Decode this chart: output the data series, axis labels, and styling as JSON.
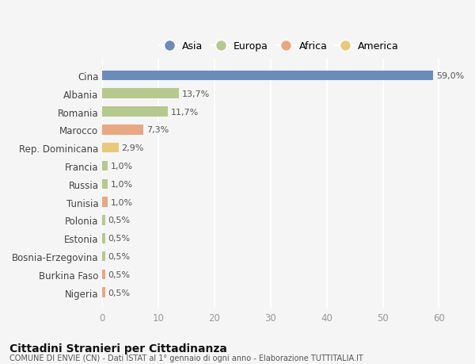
{
  "categories": [
    "Cina",
    "Albania",
    "Romania",
    "Marocco",
    "Rep. Dominicana",
    "Francia",
    "Russia",
    "Tunisia",
    "Polonia",
    "Estonia",
    "Bosnia-Erzegovina",
    "Burkina Faso",
    "Nigeria"
  ],
  "values": [
    59.0,
    13.7,
    11.7,
    7.3,
    2.9,
    1.0,
    1.0,
    1.0,
    0.5,
    0.5,
    0.5,
    0.5,
    0.5
  ],
  "labels": [
    "59,0%",
    "13,7%",
    "11,7%",
    "7,3%",
    "2,9%",
    "1,0%",
    "1,0%",
    "1,0%",
    "0,5%",
    "0,5%",
    "0,5%",
    "0,5%",
    "0,5%"
  ],
  "bar_colors": [
    "#6b8cba",
    "#b5c98e",
    "#b5c98e",
    "#e8a882",
    "#e8c87a",
    "#b5c98e",
    "#b5c98e",
    "#e8a882",
    "#b5c98e",
    "#b5c98e",
    "#b5c98e",
    "#e8a882",
    "#e8a882"
  ],
  "legend_labels": [
    "Asia",
    "Europa",
    "Africa",
    "America"
  ],
  "legend_colors": [
    "#6b8cba",
    "#b5c98e",
    "#e8a882",
    "#e8c87a"
  ],
  "xlim": [
    0,
    63
  ],
  "xticks": [
    0,
    10,
    20,
    30,
    40,
    50,
    60
  ],
  "title1": "Cittadini Stranieri per Cittadinanza",
  "title2": "COMUNE DI ENVIE (CN) - Dati ISTAT al 1° gennaio di ogni anno - Elaborazione TUTTITALIA.IT",
  "bg_color": "#f5f5f5",
  "grid_color": "#ffffff",
  "bar_height": 0.55
}
